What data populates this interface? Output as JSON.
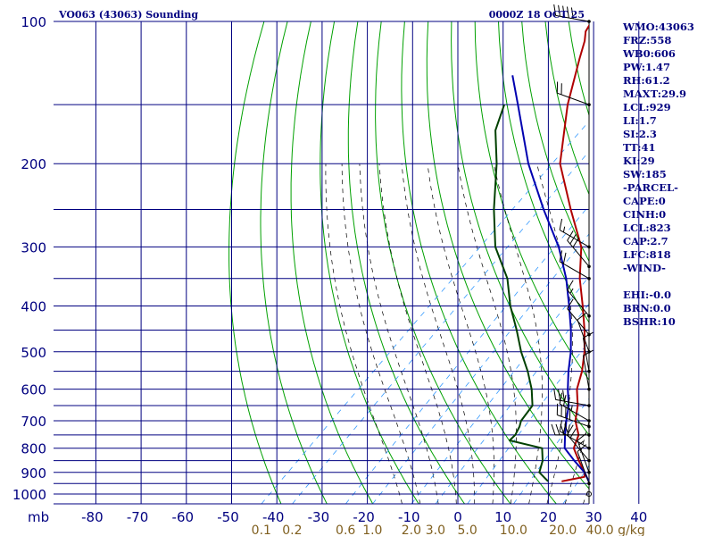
{
  "chart_data": {
    "type": "skew-t",
    "title": "VO063 (43063) Sounding",
    "timestamp": "0000Z 18 OCT 25",
    "y_unit": "mb",
    "pressure_ticks": [
      1000,
      900,
      800,
      700,
      600,
      500,
      400,
      300,
      200,
      100
    ],
    "pressure_tick_labels": [
      "1000",
      "900",
      "800",
      "700",
      "600",
      "500",
      "400",
      "300",
      "200",
      "100"
    ],
    "isobars": [
      1000,
      950,
      900,
      850,
      800,
      750,
      700,
      650,
      600,
      550,
      500,
      450,
      400,
      350,
      300,
      250,
      200,
      150,
      100
    ],
    "temp_ticks": [
      -80,
      -70,
      -60,
      -50,
      -40,
      -30,
      -20,
      -10,
      0,
      10,
      20,
      30,
      40
    ],
    "temp_tick_labels": [
      "-80",
      "-70",
      "-60",
      "-50",
      "-40",
      "-30",
      "-20",
      "-10",
      "0",
      "10",
      "20",
      "30",
      "40"
    ],
    "mixing_ratio_labels": [
      "0.1",
      "0.2",
      "0.6",
      "1.0",
      "2.0",
      "3.0",
      "5.0",
      "10.0",
      "20.0",
      "40.0"
    ],
    "mixing_ratio_unit": "g/kg",
    "series": [
      {
        "name": "temperature",
        "color": "#b00000",
        "points": [
          [
            940,
            20
          ],
          [
            920,
            24
          ],
          [
            900,
            23
          ],
          [
            850,
            19
          ],
          [
            800,
            15
          ],
          [
            750,
            13
          ],
          [
            700,
            9
          ],
          [
            650,
            6
          ],
          [
            600,
            2
          ],
          [
            550,
            -1
          ],
          [
            500,
            -5
          ],
          [
            450,
            -10
          ],
          [
            400,
            -16
          ],
          [
            350,
            -23
          ],
          [
            300,
            -30
          ],
          [
            250,
            -41
          ],
          [
            200,
            -54
          ],
          [
            150,
            -66
          ],
          [
            120,
            -74
          ],
          [
            110,
            -77
          ],
          [
            105,
            -79
          ],
          [
            100,
            -80
          ]
        ]
      },
      {
        "name": "parcel",
        "color": "#0000b0",
        "points": [
          [
            940,
            26
          ],
          [
            900,
            23
          ],
          [
            850,
            18
          ],
          [
            800,
            13
          ],
          [
            750,
            10
          ],
          [
            700,
            7
          ],
          [
            650,
            4
          ],
          [
            600,
            0
          ],
          [
            550,
            -4
          ],
          [
            500,
            -8
          ],
          [
            450,
            -13
          ],
          [
            400,
            -19
          ],
          [
            350,
            -26
          ],
          [
            300,
            -35
          ],
          [
            250,
            -47
          ],
          [
            200,
            -61
          ],
          [
            150,
            -77
          ],
          [
            130,
            -85
          ]
        ]
      },
      {
        "name": "dewpoint",
        "color": "#004000",
        "points": [
          [
            940,
            17
          ],
          [
            900,
            13
          ],
          [
            850,
            11
          ],
          [
            800,
            8
          ],
          [
            770,
            -1
          ],
          [
            750,
            -1
          ],
          [
            720,
            -2
          ],
          [
            700,
            -3
          ],
          [
            650,
            -4
          ],
          [
            600,
            -8
          ],
          [
            550,
            -13
          ],
          [
            500,
            -19
          ],
          [
            450,
            -25
          ],
          [
            400,
            -32
          ],
          [
            350,
            -39
          ],
          [
            300,
            -49
          ],
          [
            250,
            -58
          ],
          [
            200,
            -68
          ],
          [
            170,
            -76
          ],
          [
            150,
            -80
          ]
        ]
      }
    ],
    "wind_barbs": [
      {
        "p": 100,
        "dir": 280,
        "spd": 50
      },
      {
        "p": 150,
        "dir": 290,
        "spd": 20
      },
      {
        "p": 300,
        "dir": 300,
        "spd": 15
      },
      {
        "p": 330,
        "dir": 320,
        "spd": 30
      },
      {
        "p": 350,
        "dir": 300,
        "spd": 20
      },
      {
        "p": 420,
        "dir": 320,
        "spd": 15
      },
      {
        "p": 460,
        "dir": 320,
        "spd": 10
      },
      {
        "p": 500,
        "dir": 340,
        "spd": 10
      },
      {
        "p": 550,
        "dir": 350,
        "spd": 10
      },
      {
        "p": 600,
        "dir": 350,
        "spd": 10
      },
      {
        "p": 650,
        "dir": 280,
        "spd": 30
      },
      {
        "p": 700,
        "dir": 300,
        "spd": 35
      },
      {
        "p": 720,
        "dir": 290,
        "spd": 40
      },
      {
        "p": 750,
        "dir": 270,
        "spd": 40
      },
      {
        "p": 800,
        "dir": 300,
        "spd": 30
      },
      {
        "p": 850,
        "dir": 320,
        "spd": 20
      },
      {
        "p": 900,
        "dir": 340,
        "spd": 15
      },
      {
        "p": 950,
        "dir": 340,
        "spd": 10
      },
      {
        "p": 1000,
        "dir": 0,
        "spd": 0
      }
    ]
  },
  "indices": [
    "WMO:43063",
    "FRZ:558",
    "WB0:606",
    "PW:1.47",
    "RH:61.2",
    "MAXT:29.9",
    "LCL:929",
    "LI:1.7",
    "SI:2.3",
    "TT:41",
    "KI:29",
    "SW:185",
    "-PARCEL-",
    "CAPE:0",
    "CINH:0",
    "LCL:823",
    "CAP:2.7",
    "LFC:818",
    "-WIND-",
    "",
    "EHI:-0.0",
    "BRN:0.0",
    "BSHR:10"
  ],
  "colors": {
    "grid": "#000080",
    "dry_adiabat": "#00a000",
    "moist_adiabat": "#000000",
    "mixing_ratio": "#3399ff",
    "temperature": "#b00000",
    "parcel": "#0000b0",
    "dewpoint": "#004000",
    "text": "#000080",
    "mixing_label": "#806020"
  }
}
